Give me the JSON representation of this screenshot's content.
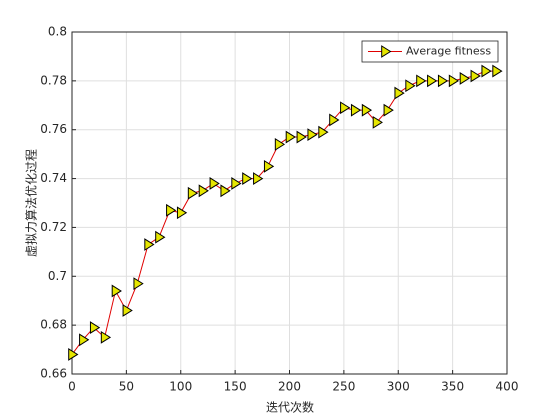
{
  "chart_data": {
    "type": "line",
    "xlabel": "迭代次数",
    "ylabel": "虚拟力算法优化过程",
    "x": [
      0,
      10,
      20,
      30,
      40,
      50,
      60,
      70,
      80,
      90,
      100,
      110,
      120,
      130,
      140,
      150,
      160,
      170,
      180,
      190,
      200,
      210,
      220,
      230,
      240,
      250,
      260,
      270,
      280,
      290,
      300,
      310,
      320,
      330,
      340,
      350,
      360,
      370,
      380,
      390
    ],
    "series": [
      {
        "name": "Average fitness",
        "color": "#e00000",
        "marker_color": "#e6e600",
        "values": [
          0.668,
          0.674,
          0.679,
          0.675,
          0.694,
          0.686,
          0.697,
          0.713,
          0.716,
          0.727,
          0.726,
          0.734,
          0.735,
          0.738,
          0.735,
          0.738,
          0.74,
          0.74,
          0.745,
          0.754,
          0.757,
          0.757,
          0.758,
          0.759,
          0.764,
          0.769,
          0.768,
          0.768,
          0.763,
          0.768,
          0.775,
          0.778,
          0.78,
          0.78,
          0.78,
          0.78,
          0.781,
          0.782,
          0.784,
          0.784
        ]
      }
    ],
    "xlim": [
      0,
      400
    ],
    "xticks": [
      0,
      50,
      100,
      150,
      200,
      250,
      300,
      350,
      400
    ],
    "ylim": [
      0.66,
      0.8
    ],
    "yticks": [
      0.66,
      0.68,
      0.7,
      0.72,
      0.74,
      0.76,
      0.78,
      0.8
    ],
    "grid": true,
    "legend": "upper right"
  }
}
